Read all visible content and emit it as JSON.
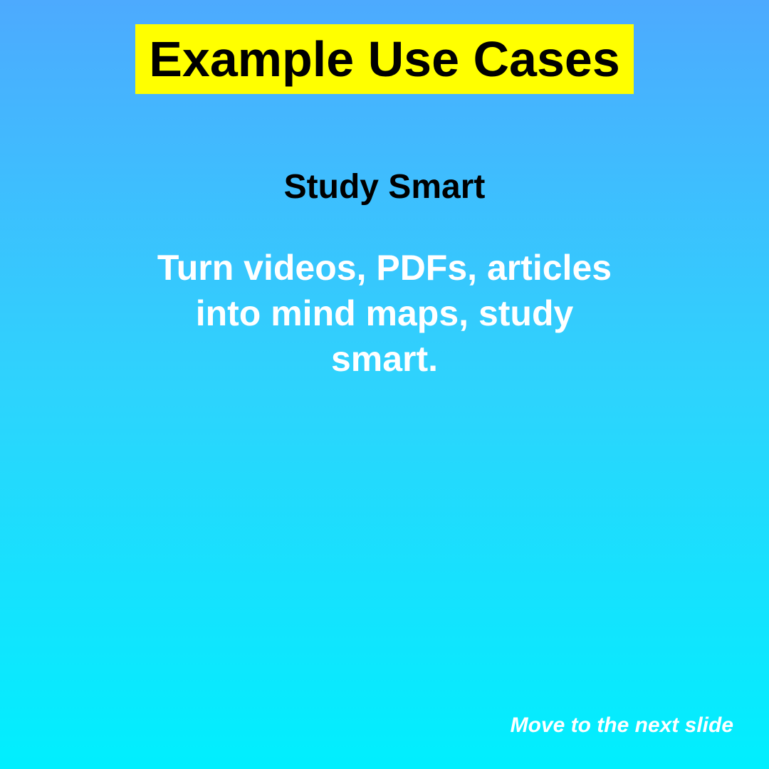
{
  "slide": {
    "title": "Example Use Cases",
    "subtitle": "Study Smart",
    "body": "Turn videos, PDFs, articles into mind maps, study smart.",
    "next_label": "Move to the next slide"
  },
  "colors": {
    "gradient_top": "#4daafe",
    "gradient_bottom": "#00effe",
    "title_highlight": "#ffff00",
    "title_text": "#000000",
    "subtitle_text": "#000000",
    "body_text": "#ffffff",
    "next_text": "#ffffff"
  }
}
